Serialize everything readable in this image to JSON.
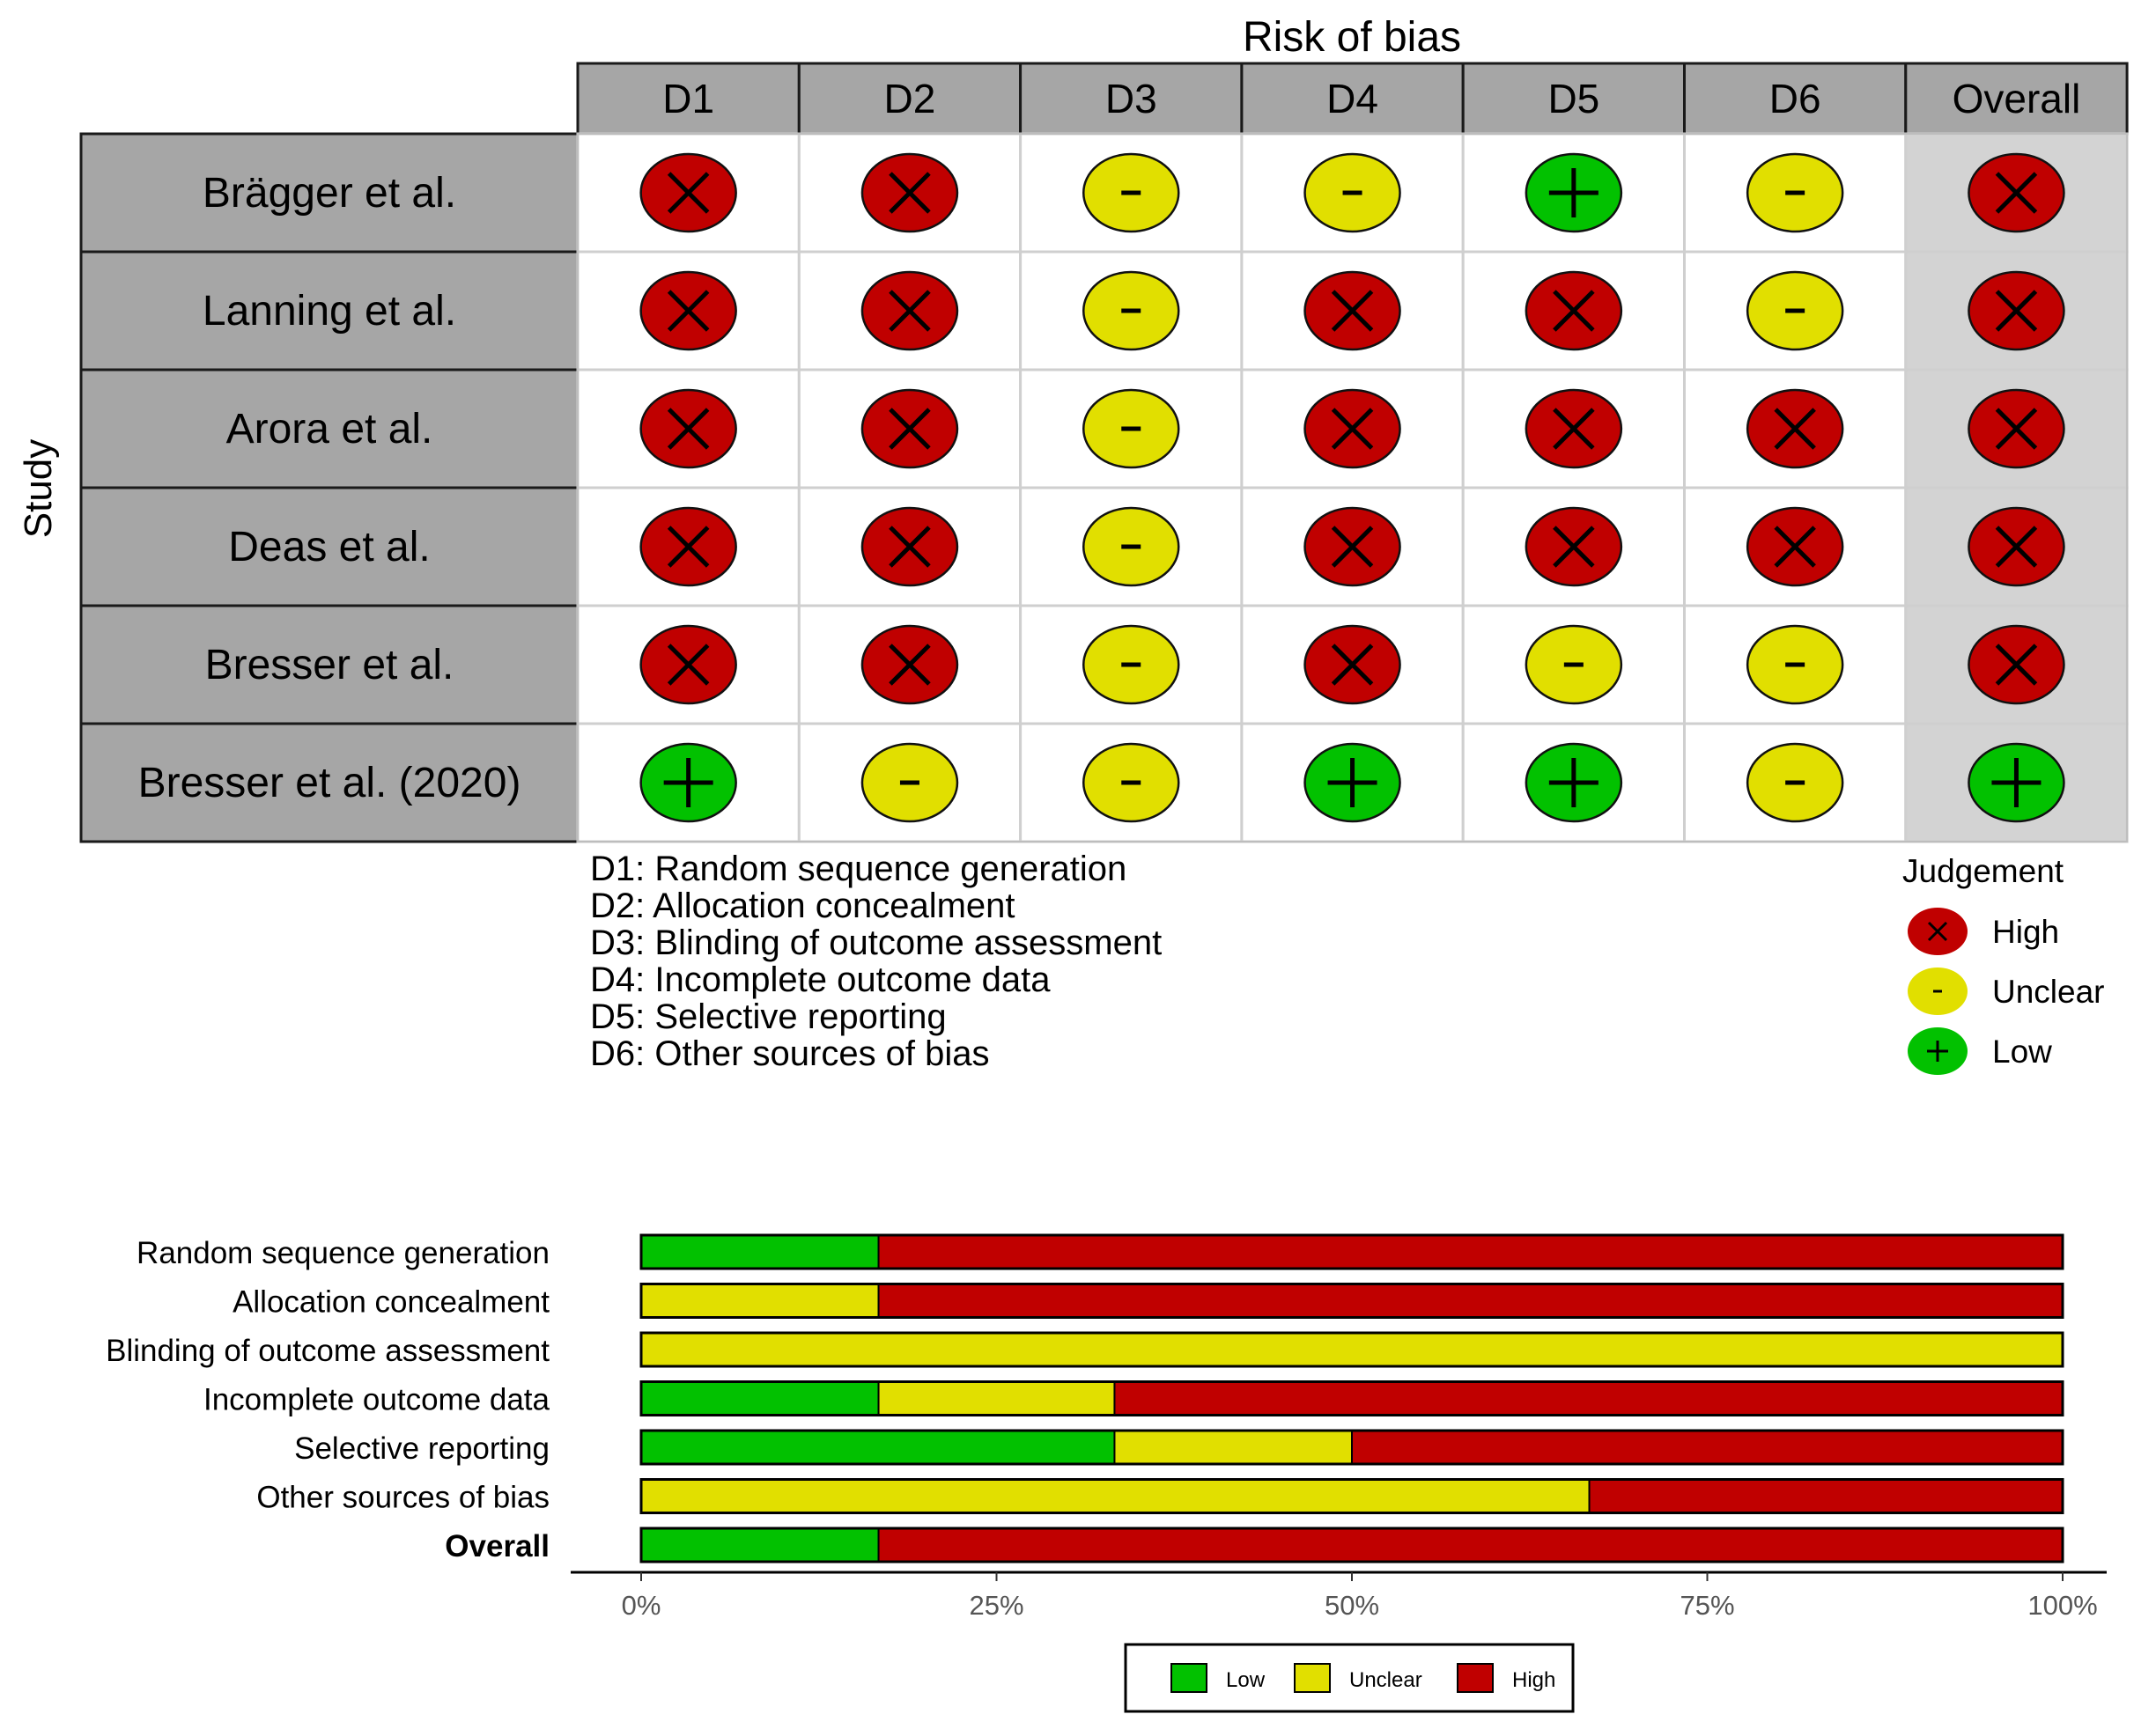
{
  "colors": {
    "high": "#C00000",
    "unclear": "#E1DF00",
    "low": "#02C100",
    "header_bg": "#A6A6A6",
    "overall_bg": "#D3D3D3",
    "cell_border": "#CFCFCF"
  },
  "chart_data": [
    {
      "type": "table",
      "title": "Risk of bias",
      "y_axis_label": "Study",
      "columns": [
        "D1",
        "D2",
        "D3",
        "D4",
        "D5",
        "D6",
        "Overall"
      ],
      "studies": [
        {
          "name": "Brägger et al.",
          "judgements": [
            "high",
            "high",
            "unclear",
            "unclear",
            "low",
            "unclear",
            "high"
          ]
        },
        {
          "name": "Lanning et al.",
          "judgements": [
            "high",
            "high",
            "unclear",
            "high",
            "high",
            "unclear",
            "high"
          ]
        },
        {
          "name": "Arora et al.",
          "judgements": [
            "high",
            "high",
            "unclear",
            "high",
            "high",
            "high",
            "high"
          ]
        },
        {
          "name": "Deas et al.",
          "judgements": [
            "high",
            "high",
            "unclear",
            "high",
            "high",
            "high",
            "high"
          ]
        },
        {
          "name": "Bresser et al.",
          "judgements": [
            "high",
            "high",
            "unclear",
            "high",
            "unclear",
            "unclear",
            "high"
          ]
        },
        {
          "name": "Bresser et al. (2020)",
          "judgements": [
            "low",
            "unclear",
            "unclear",
            "low",
            "low",
            "unclear",
            "low"
          ]
        }
      ],
      "symbols": {
        "high": "X",
        "unclear": "-",
        "low": "+"
      },
      "domain_key": [
        "D1: Random sequence generation",
        "D2: Allocation concealment",
        "D3: Blinding of outcome assessment",
        "D4: Incomplete outcome data",
        "D5: Selective reporting",
        "D6: Other sources of bias"
      ],
      "legend": {
        "title": "Judgement",
        "items": [
          {
            "key": "high",
            "label": "High"
          },
          {
            "key": "unclear",
            "label": "Unclear"
          },
          {
            "key": "low",
            "label": "Low"
          }
        ]
      }
    },
    {
      "type": "bar",
      "orientation": "horizontal",
      "stacked": true,
      "categories": [
        "Random sequence generation",
        "Allocation concealment",
        "Blinding of outcome assessment",
        "Incomplete outcome data",
        "Selective reporting",
        "Other sources of bias",
        "Overall"
      ],
      "series": [
        {
          "name": "Low",
          "key": "low",
          "values": [
            16.7,
            0,
            0,
            16.7,
            33.3,
            0,
            16.7
          ]
        },
        {
          "name": "Unclear",
          "key": "unclear",
          "values": [
            0,
            16.7,
            100,
            16.6,
            16.7,
            66.7,
            0
          ]
        },
        {
          "name": "High",
          "key": "high",
          "values": [
            83.3,
            83.3,
            0,
            66.7,
            50,
            33.3,
            83.3
          ]
        }
      ],
      "xlim": [
        0,
        100
      ],
      "xticks": [
        "0%",
        "25%",
        "50%",
        "75%",
        "100%"
      ],
      "legend": [
        "Low",
        "Unclear",
        "High"
      ]
    }
  ]
}
